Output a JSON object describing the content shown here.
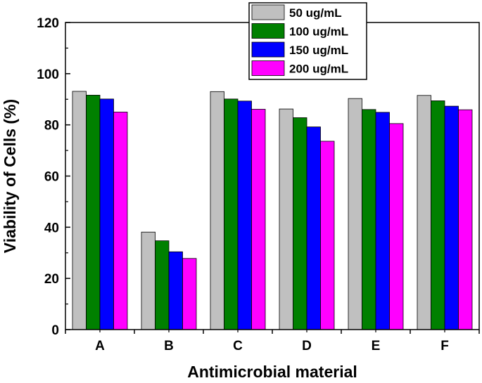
{
  "chart_data": {
    "type": "bar",
    "title": "",
    "xlabel": "Antimicrobial material",
    "ylabel": "Viability of Cells (%)",
    "categories": [
      "A",
      "B",
      "C",
      "D",
      "E",
      "F"
    ],
    "ylim": [
      0,
      120
    ],
    "yticks": [
      0,
      20,
      40,
      60,
      80,
      100,
      120
    ],
    "grid": false,
    "legend_position": "top-right",
    "series": [
      {
        "name": "50 ug/mL",
        "color": "#c0c0c0",
        "values": [
          93.1,
          38.1,
          93.0,
          86.2,
          90.3,
          91.5
        ]
      },
      {
        "name": "100 ug/mL",
        "color": "#008000",
        "values": [
          91.6,
          34.7,
          90.1,
          82.8,
          86.0,
          89.4
        ]
      },
      {
        "name": "150 ug/mL",
        "color": "#0000ff",
        "values": [
          90.1,
          30.4,
          89.3,
          79.2,
          84.9,
          87.3
        ]
      },
      {
        "name": "200 ug/mL",
        "color": "#ff00ff",
        "values": [
          85.0,
          27.8,
          86.1,
          73.6,
          80.5,
          85.9
        ]
      }
    ]
  }
}
